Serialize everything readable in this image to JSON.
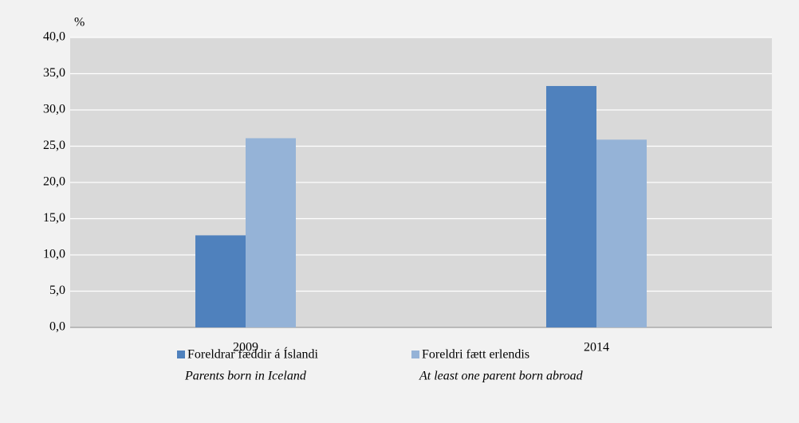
{
  "chart_data": {
    "type": "bar",
    "y_unit": "%",
    "categories": [
      "2009",
      "2014"
    ],
    "series": [
      {
        "name": "Foreldrar fæddir á Íslandi",
        "subtitle": "Parents born in Iceland",
        "color": "#4f81bd",
        "values": [
          12.7,
          33.3
        ]
      },
      {
        "name": "Foreldri fætt erlendis",
        "subtitle": "At least one parent born abroad",
        "color": "#95b3d7",
        "values": [
          26.1,
          25.9
        ]
      }
    ],
    "ylim": [
      0,
      40
    ],
    "yticks": [
      {
        "value": 0,
        "label": "0,0"
      },
      {
        "value": 5,
        "label": "5,0"
      },
      {
        "value": 10,
        "label": "10,0"
      },
      {
        "value": 15,
        "label": "15,0"
      },
      {
        "value": 20,
        "label": "20,0"
      },
      {
        "value": 25,
        "label": "25,0"
      },
      {
        "value": 30,
        "label": "30,0"
      },
      {
        "value": 35,
        "label": "35,0"
      },
      {
        "value": 40,
        "label": "40,0"
      }
    ],
    "grid": true,
    "legend": "bottom"
  }
}
